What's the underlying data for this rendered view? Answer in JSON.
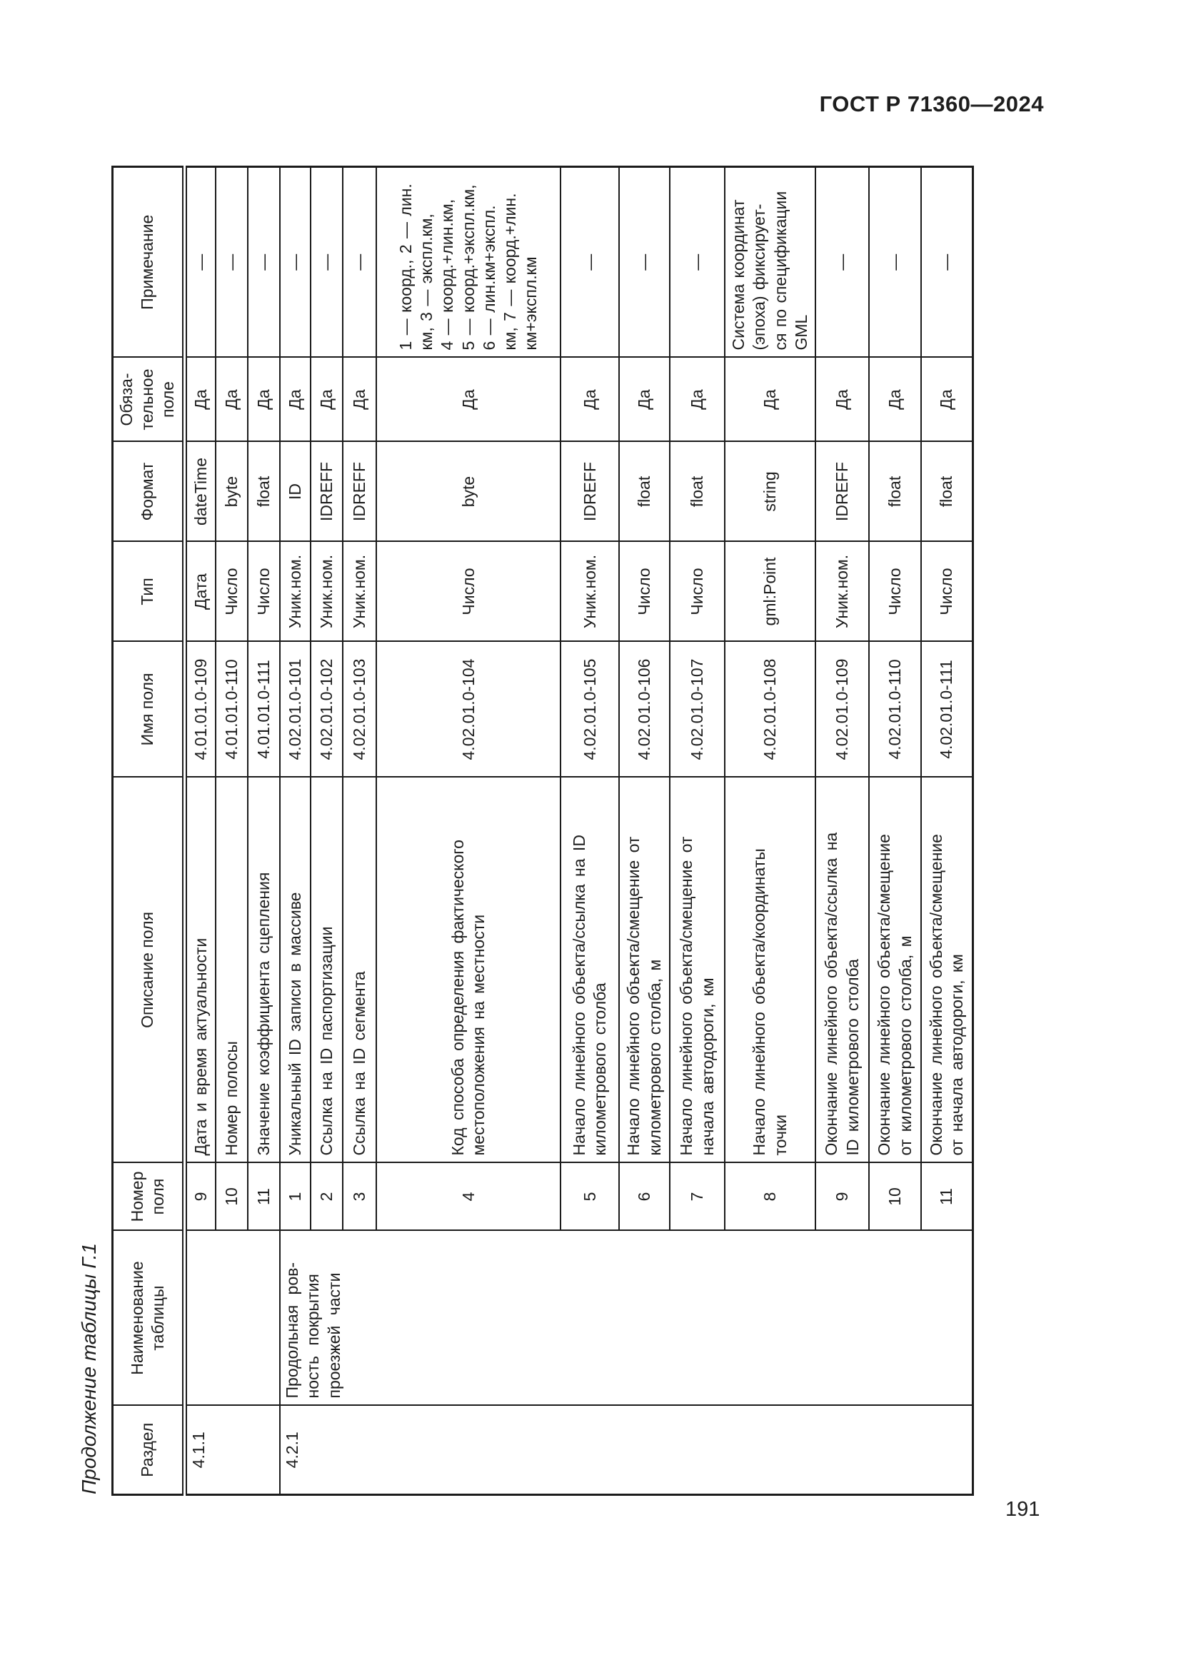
{
  "page": {
    "header": "ГОСТ Р 71360—2024",
    "caption": "Продолжение таблицы Г.1",
    "number": "191"
  },
  "table": {
    "headers": {
      "razdel": "Раздел",
      "naimenovanie": "Наименование\nтаблицы",
      "nomer": "Номер\nполя",
      "opisanie": "Описание поля",
      "imya": "Имя поля",
      "tip": "Тип",
      "format": "Формат",
      "obyaz": "Обяза-\nтельное\nполе",
      "primechanie": "Примечание"
    },
    "groups": [
      {
        "razdel": "4.1.1",
        "naimenovanie": "",
        "rows": [
          {
            "nomer": "9",
            "opisanie": "Дата и время актуальности",
            "imya": "4.01.01.0-109",
            "tip": "Дата",
            "format": "dateTime",
            "obyaz": "Да",
            "prim": "—"
          },
          {
            "nomer": "10",
            "opisanie": "Номер полосы",
            "imya": "4.01.01.0-110",
            "tip": "Число",
            "format": "byte",
            "obyaz": "Да",
            "prim": "—"
          },
          {
            "nomer": "11",
            "opisanie": "Значение коэффициента сцепления",
            "imya": "4.01.01.0-111",
            "tip": "Число",
            "format": "float",
            "obyaz": "Да",
            "prim": "—"
          }
        ]
      },
      {
        "razdel": "4.2.1",
        "naimenovanie": "Продольная ров-\nность покрытия\nпроезжей части",
        "rows": [
          {
            "nomer": "1",
            "opisanie": "Уникальный ID записи в массиве",
            "imya": "4.02.01.0-101",
            "tip": "Уник.ном.",
            "format": "ID",
            "obyaz": "Да",
            "prim": "—"
          },
          {
            "nomer": "2",
            "opisanie": "Ссылка на ID паспортизации",
            "imya": "4.02.01.0-102",
            "tip": "Уник.ном.",
            "format": "IDREFF",
            "obyaz": "Да",
            "prim": "—"
          },
          {
            "nomer": "3",
            "opisanie": "Ссылка на ID сегмента",
            "imya": "4.02.01.0-103",
            "tip": "Уник.ном.",
            "format": "IDREFF",
            "obyaz": "Да",
            "prim": "—"
          },
          {
            "nomer": "4",
            "opisanie": "Код способа определения фактического\nместоположения на местности",
            "imya": "4.02.01.0-104",
            "tip": "Число",
            "format": "byte",
            "obyaz": "Да",
            "prim": "1 — коорд., 2 — лин.\nкм, 3 — экспл.км,\n4 — коорд.+лин.км,\n5 — коорд.+экспл.км,\n6 — лин.км+экспл.\nкм, 7 — коорд.+лин.\nкм+экспл.км"
          },
          {
            "nomer": "5",
            "opisanie": "Начало линейного объекта/ссылка на ID\nкилометрового столба",
            "imya": "4.02.01.0-105",
            "tip": "Уник.ном.",
            "format": "IDREFF",
            "obyaz": "Да",
            "prim": "—"
          },
          {
            "nomer": "6",
            "opisanie": "Начало линейного объекта/смещение от\nкилометрового столба, м",
            "imya": "4.02.01.0-106",
            "tip": "Число",
            "format": "float",
            "obyaz": "Да",
            "prim": "—"
          },
          {
            "nomer": "7",
            "opisanie": "Начало линейного объекта/смещение от\nначала автодороги, км",
            "imya": "4.02.01.0-107",
            "tip": "Число",
            "format": "float",
            "obyaz": "Да",
            "prim": "—"
          },
          {
            "nomer": "8",
            "opisanie": "Начало линейного объекта/координаты\nточки",
            "imya": "4.02.01.0-108",
            "tip": "gml:Point",
            "format": "string",
            "obyaz": "Да",
            "prim": "Система координат\n(эпоха) фиксирует-\nся по спецификации\nGML"
          },
          {
            "nomer": "9",
            "opisanie": "Окончание линейного объекта/ссылка на\nID километрового столба",
            "imya": "4.02.01.0-109",
            "tip": "Уник.ном.",
            "format": "IDREFF",
            "obyaz": "Да",
            "prim": "—"
          },
          {
            "nomer": "10",
            "opisanie": "Окончание линейного объекта/смещение\nот километрового столба, м",
            "imya": "4.02.01.0-110",
            "tip": "Число",
            "format": "float",
            "obyaz": "Да",
            "prim": "—"
          },
          {
            "nomer": "11",
            "opisanie": "Окончание линейного объекта/смещение\nот начала автодороги, км",
            "imya": "4.02.01.0-111",
            "tip": "Число",
            "format": "float",
            "obyaz": "Да",
            "prim": "—"
          }
        ]
      }
    ]
  }
}
